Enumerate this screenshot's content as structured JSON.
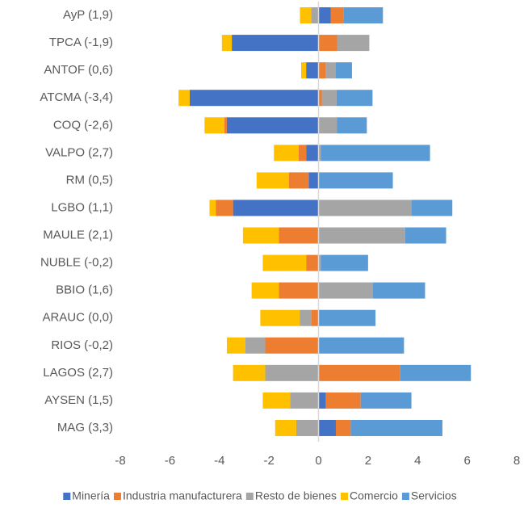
{
  "chart_data": {
    "type": "bar",
    "orientation": "horizontal",
    "stacked": true,
    "categories": [
      "AyP (1,9)",
      "TPCA (-1,9)",
      "ANTOF (0,6)",
      "ATCMA (-3,4)",
      "COQ (-2,6)",
      "VALPO (2,7)",
      "RM (0,5)",
      "LGBO (1,1)",
      "MAULE (2,1)",
      "NUBLE (-0,2)",
      "BBIO (1,6)",
      "ARAUC (0,0)",
      "RIOS (-0,2)",
      "LAGOS (2,7)",
      "AYSEN (1,5)",
      "MAG (3,3)"
    ],
    "series": [
      {
        "name": "Minería",
        "color": "#4472c4",
        "values": [
          0.5,
          -3.5,
          -0.5,
          -5.2,
          -3.7,
          -0.5,
          -0.4,
          -3.45,
          0,
          0,
          0,
          0,
          0,
          0,
          0.3,
          0.7
        ]
      },
      {
        "name": "Industria manufacturera",
        "color": "#ed7d31",
        "values": [
          0.5,
          0.75,
          0.3,
          0.13,
          -0.1,
          -0.3,
          -0.8,
          -0.7,
          -1.6,
          -0.5,
          -1.6,
          -0.3,
          -2.15,
          3.3,
          1.4,
          0.6
        ]
      },
      {
        "name": "Resto de bienes",
        "color": "#a5a5a5",
        "values": [
          -0.3,
          1.3,
          0.4,
          0.6,
          0.75,
          0.1,
          0,
          3.75,
          3.5,
          0.1,
          2.2,
          -0.45,
          -0.8,
          -2.15,
          -1.15,
          -0.9
        ]
      },
      {
        "name": "Comercio",
        "color": "#ffc000",
        "values": [
          -0.45,
          -0.4,
          -0.2,
          -0.45,
          -0.8,
          -1.0,
          -1.3,
          -0.25,
          -1.45,
          -1.75,
          -1.1,
          -1.6,
          -0.75,
          -1.3,
          -1.1,
          -0.85
        ]
      },
      {
        "name": "Servicios",
        "color": "#5b9bd5",
        "values": [
          1.6,
          0,
          0.65,
          1.45,
          1.2,
          4.4,
          3.0,
          1.65,
          1.65,
          1.9,
          2.1,
          2.3,
          3.45,
          2.85,
          2.05,
          3.7
        ]
      }
    ],
    "xlim": [
      -8,
      8
    ],
    "xticks": [
      -8,
      -6,
      -4,
      -2,
      0,
      2,
      4,
      6,
      8
    ],
    "legend": "bottom"
  }
}
